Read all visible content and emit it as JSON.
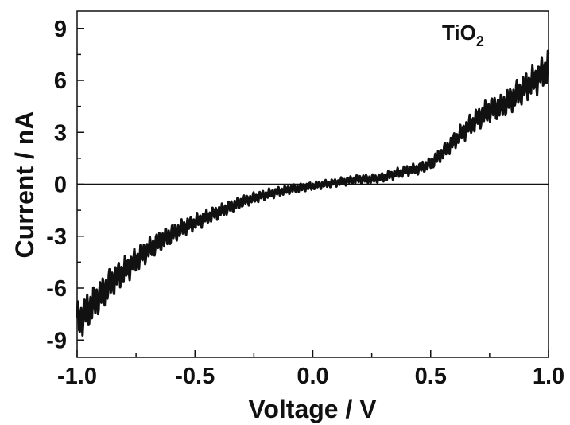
{
  "chart_data": {
    "type": "line",
    "title": "",
    "xlabel": "Voltage / V",
    "ylabel": "Current / nA",
    "xlim": [
      -1.0,
      1.0
    ],
    "ylim": [
      -10,
      10
    ],
    "xticks": [
      -1.0,
      -0.5,
      0.0,
      0.5,
      1.0
    ],
    "xtick_labels": [
      "-1.0",
      "-0.5",
      "0.0",
      "0.5",
      "1.0"
    ],
    "yticks": [
      -9,
      -6,
      -3,
      0,
      3,
      6,
      9
    ],
    "ytick_labels": [
      "-9",
      "-6",
      "-3",
      "0",
      "3",
      "6",
      "9"
    ],
    "grid": false,
    "annotation": {
      "text": "TiO",
      "subscript": "2"
    },
    "reference_line": {
      "y": 0,
      "x_range": [
        -1.0,
        1.0
      ]
    },
    "series": [
      {
        "x": [
          -1.0,
          -0.95,
          -0.9,
          -0.85,
          -0.8,
          -0.75,
          -0.7,
          -0.65,
          -0.6,
          -0.55,
          -0.5,
          -0.45,
          -0.4,
          -0.35,
          -0.3,
          -0.25,
          -0.2,
          -0.15,
          -0.1,
          -0.05,
          0.0,
          0.05,
          0.1,
          0.15,
          0.2,
          0.25,
          0.3,
          0.35,
          0.4,
          0.45,
          0.5,
          0.55,
          0.6,
          0.65,
          0.7,
          0.75,
          0.8,
          0.85,
          0.9,
          0.95,
          1.0
        ],
        "values": [
          -8.0,
          -7.2,
          -6.4,
          -5.6,
          -5.0,
          -4.4,
          -3.8,
          -3.3,
          -2.9,
          -2.5,
          -2.2,
          -1.9,
          -1.6,
          -1.3,
          -1.0,
          -0.8,
          -0.6,
          -0.45,
          -0.3,
          -0.2,
          -0.1,
          0.0,
          0.1,
          0.2,
          0.3,
          0.3,
          0.4,
          0.6,
          0.8,
          0.9,
          1.2,
          1.8,
          2.5,
          3.2,
          3.8,
          4.3,
          4.5,
          5.0,
          5.6,
          6.1,
          6.8
        ]
      }
    ]
  }
}
